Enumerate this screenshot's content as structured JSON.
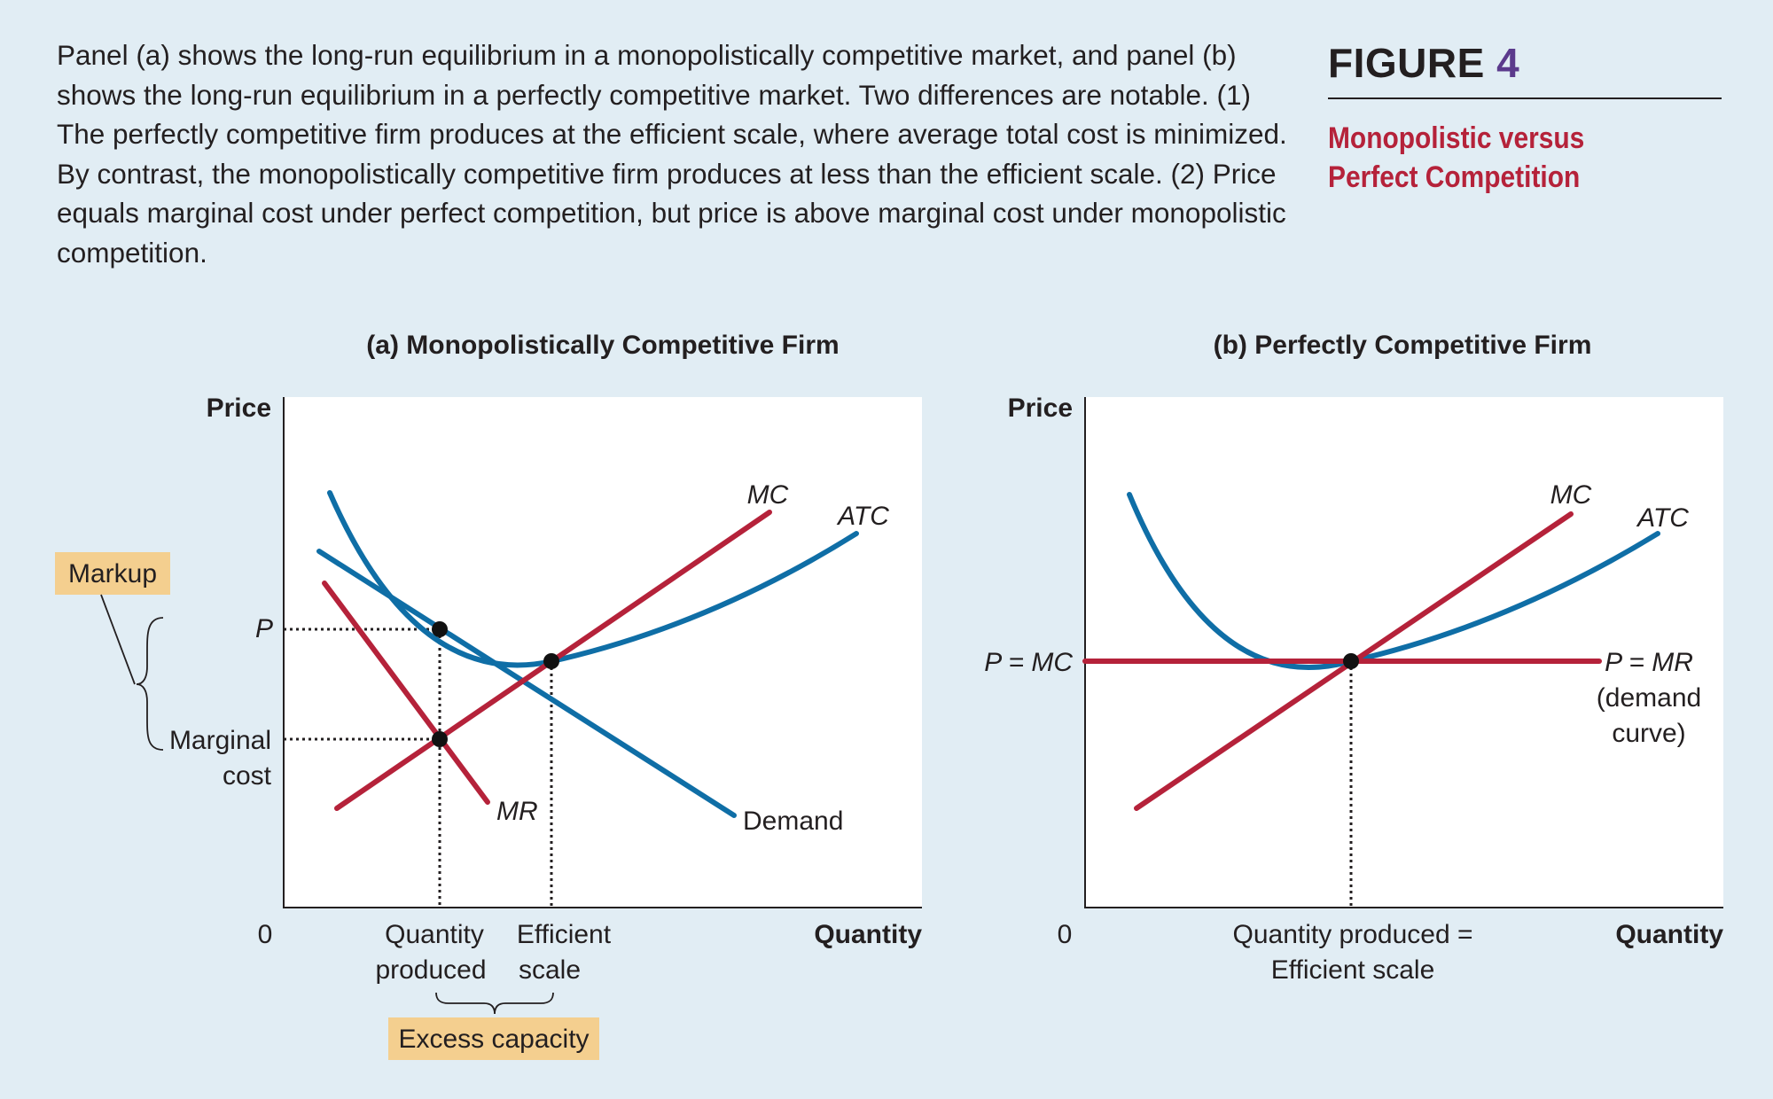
{
  "caption": "Panel (a) shows the long-run equilibrium in a monopolistically competitive market, and panel (b) shows the long-run equilibrium in a perfectly competitive market. Two differences are notable. (1) The perfectly competitive firm produces at the efficient scale, where average total cost is minimized. By contrast, the monopolistically competitive firm produces at less than the efficient scale. (2) Price equals marginal cost under perfect competition, but price is above marginal cost under monopolistic competition.",
  "figure": {
    "label": "FIGURE",
    "number": "4",
    "title": "Monopolistic versus Perfect Competition"
  },
  "panel_a": {
    "title": "(a) Monopolistically Competitive Firm",
    "y_axis": "Price",
    "x_axis": "Quantity",
    "origin": "0",
    "labels": {
      "mc": "MC",
      "atc": "ATC",
      "mr": "MR",
      "demand": "Demand",
      "p": "P",
      "marginal_cost_1": "Marginal",
      "marginal_cost_2": "cost",
      "qty_produced_1": "Quantity",
      "qty_produced_2": "produced",
      "efficient_scale_1": "Efficient",
      "efficient_scale_2": "scale",
      "markup": "Markup",
      "excess_capacity": "Excess capacity"
    }
  },
  "panel_b": {
    "title": "(b) Perfectly Competitive Firm",
    "y_axis": "Price",
    "x_axis": "Quantity",
    "origin": "0",
    "labels": {
      "mc": "MC",
      "atc": "ATC",
      "p_eq_mc": "P = MC",
      "p_eq_mr": "P = MR",
      "demand_curve_1": "(demand",
      "demand_curve_2": "curve)",
      "qty_eff_1": "Quantity produced =",
      "qty_eff_2": "Efficient scale"
    }
  },
  "colors": {
    "background": "#e1edf4",
    "blue_curves": "#0f6ea6",
    "red_curves": "#b5223a",
    "label_box": "#f4cf8f",
    "figure_number": "#5b3a8c"
  }
}
